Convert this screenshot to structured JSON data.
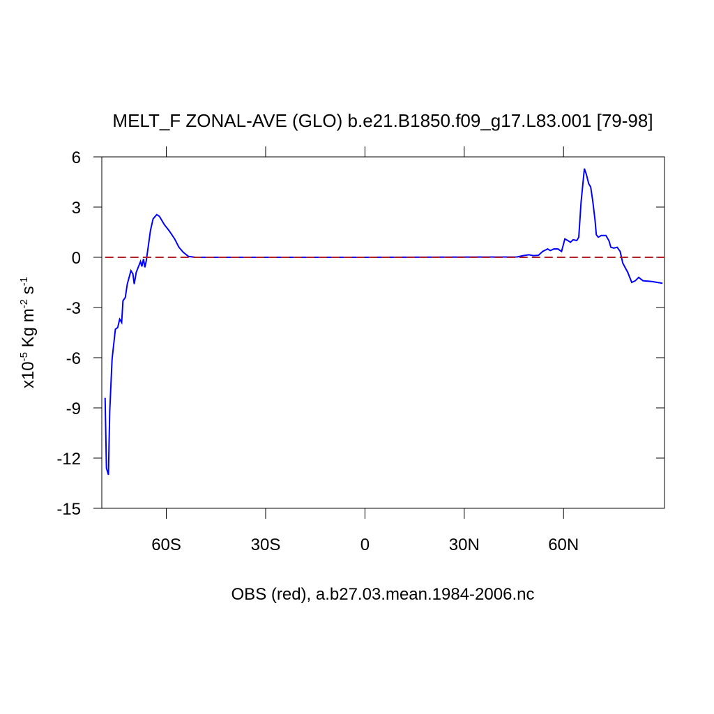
{
  "chart_data": {
    "type": "line",
    "title": "MELT_F ZONAL-AVE (GLO) b.e21.B1850.f09_g17.L83.001 [79-98]",
    "xlabel": "OBS (red), a.b27.03.mean.1984-2006.nc",
    "ylabel": [
      "x10",
      "-5",
      " Kg m",
      "-2",
      " s",
      "-1"
    ],
    "xlim": [
      -79.5,
      90.5
    ],
    "xticks": [
      {
        "value": -60,
        "label": "60S"
      },
      {
        "value": -30,
        "label": "30S"
      },
      0,
      {
        "value": 30,
        "label": "30N"
      },
      {
        "value": 60,
        "label": "60N"
      }
    ],
    "ylim": [
      -15,
      6
    ],
    "yticks": [
      6,
      3,
      0,
      -3,
      -6,
      -9,
      -12,
      -15
    ],
    "series": [
      {
        "color": "#0000ff",
        "x": [
          -78.5,
          -78.1,
          -77.5,
          -77.1,
          -76.4,
          -75.4,
          -74.7,
          -74.1,
          -73.5,
          -73.1,
          -72.4,
          -71.8,
          -70.7,
          -70.1,
          -69.7,
          -69.1,
          -68.2,
          -67.8,
          -67.4,
          -66.9,
          -66.5,
          -66.1,
          -65.5,
          -64.8,
          -64.0,
          -62.9,
          -62.1,
          -60.6,
          -59.2,
          -57.5,
          -56.2,
          -54.9,
          -53.3,
          -51.2,
          0,
          46,
          47.8,
          49.5,
          50.9,
          52.4,
          53.7,
          55.2,
          56.0,
          57.1,
          58.3,
          59.4,
          60.4,
          61.3,
          62.1,
          62.9,
          64.0,
          64.6,
          65.3,
          66.3,
          66.9,
          67.6,
          68.2,
          68.8,
          69.5,
          69.9,
          70.5,
          71.4,
          72.2,
          72.8,
          73.7,
          74.3,
          75.2,
          76.2,
          77.1,
          77.9,
          79.4,
          80.6,
          81.7,
          82.7,
          84.0,
          86.7,
          89.9
        ],
        "values": [
          -8.4,
          -12.6,
          -13.0,
          -9.2,
          -6.1,
          -4.3,
          -4.2,
          -3.7,
          -3.9,
          -2.6,
          -2.4,
          -1.6,
          -0.8,
          -1.0,
          -1.6,
          -0.9,
          -0.45,
          -0.25,
          -0.55,
          -0.1,
          -0.6,
          -0.25,
          0.6,
          1.6,
          2.3,
          2.55,
          2.45,
          1.95,
          1.6,
          1.1,
          0.6,
          0.3,
          0.05,
          0.0,
          0.0,
          0.02,
          0.1,
          0.15,
          0.1,
          0.12,
          0.35,
          0.5,
          0.4,
          0.5,
          0.5,
          0.35,
          1.1,
          1.0,
          0.9,
          1.05,
          1.0,
          1.2,
          3.3,
          5.3,
          4.95,
          4.4,
          4.2,
          3.4,
          2.25,
          1.35,
          1.2,
          1.3,
          1.3,
          1.3,
          1.0,
          0.6,
          0.55,
          0.6,
          0.35,
          -0.35,
          -0.9,
          -1.5,
          -1.4,
          -1.2,
          -1.4,
          -1.45,
          -1.55
        ]
      },
      {
        "color": "#b22222",
        "dashed": true,
        "x": [
          -78.5,
          90.5
        ],
        "values": [
          0,
          0
        ]
      }
    ]
  }
}
